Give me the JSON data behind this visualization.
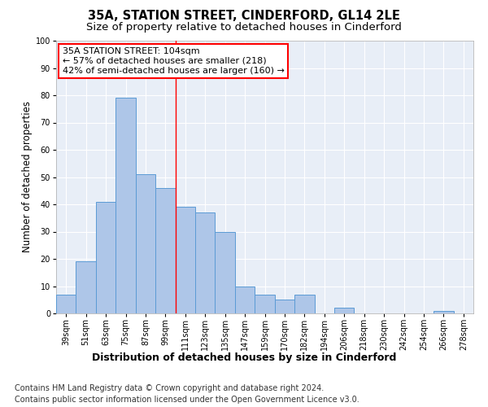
{
  "title": "35A, STATION STREET, CINDERFORD, GL14 2LE",
  "subtitle": "Size of property relative to detached houses in Cinderford",
  "xlabel": "Distribution of detached houses by size in Cinderford",
  "ylabel": "Number of detached properties",
  "categories": [
    "39sqm",
    "51sqm",
    "63sqm",
    "75sqm",
    "87sqm",
    "99sqm",
    "111sqm",
    "123sqm",
    "135sqm",
    "147sqm",
    "159sqm",
    "170sqm",
    "182sqm",
    "194sqm",
    "206sqm",
    "218sqm",
    "230sqm",
    "242sqm",
    "254sqm",
    "266sqm",
    "278sqm"
  ],
  "values": [
    7,
    19,
    41,
    79,
    51,
    46,
    39,
    37,
    30,
    10,
    7,
    5,
    7,
    0,
    2,
    0,
    0,
    0,
    0,
    1,
    0
  ],
  "bar_color": "#aec6e8",
  "bar_edge_color": "#5b9bd5",
  "background_color": "#e8eef7",
  "grid_color": "#ffffff",
  "annotation_text_line1": "35A STATION STREET: 104sqm",
  "annotation_text_line2": "← 57% of detached houses are smaller (218)",
  "annotation_text_line3": "42% of semi-detached houses are larger (160) →",
  "red_line_category_index": 5.5,
  "ylim": [
    0,
    100
  ],
  "yticks": [
    0,
    10,
    20,
    30,
    40,
    50,
    60,
    70,
    80,
    90,
    100
  ],
  "footnote_line1": "Contains HM Land Registry data © Crown copyright and database right 2024.",
  "footnote_line2": "Contains public sector information licensed under the Open Government Licence v3.0.",
  "title_fontsize": 10.5,
  "subtitle_fontsize": 9.5,
  "xlabel_fontsize": 9,
  "ylabel_fontsize": 8.5,
  "tick_fontsize": 7,
  "annotation_fontsize": 8,
  "footnote_fontsize": 7
}
